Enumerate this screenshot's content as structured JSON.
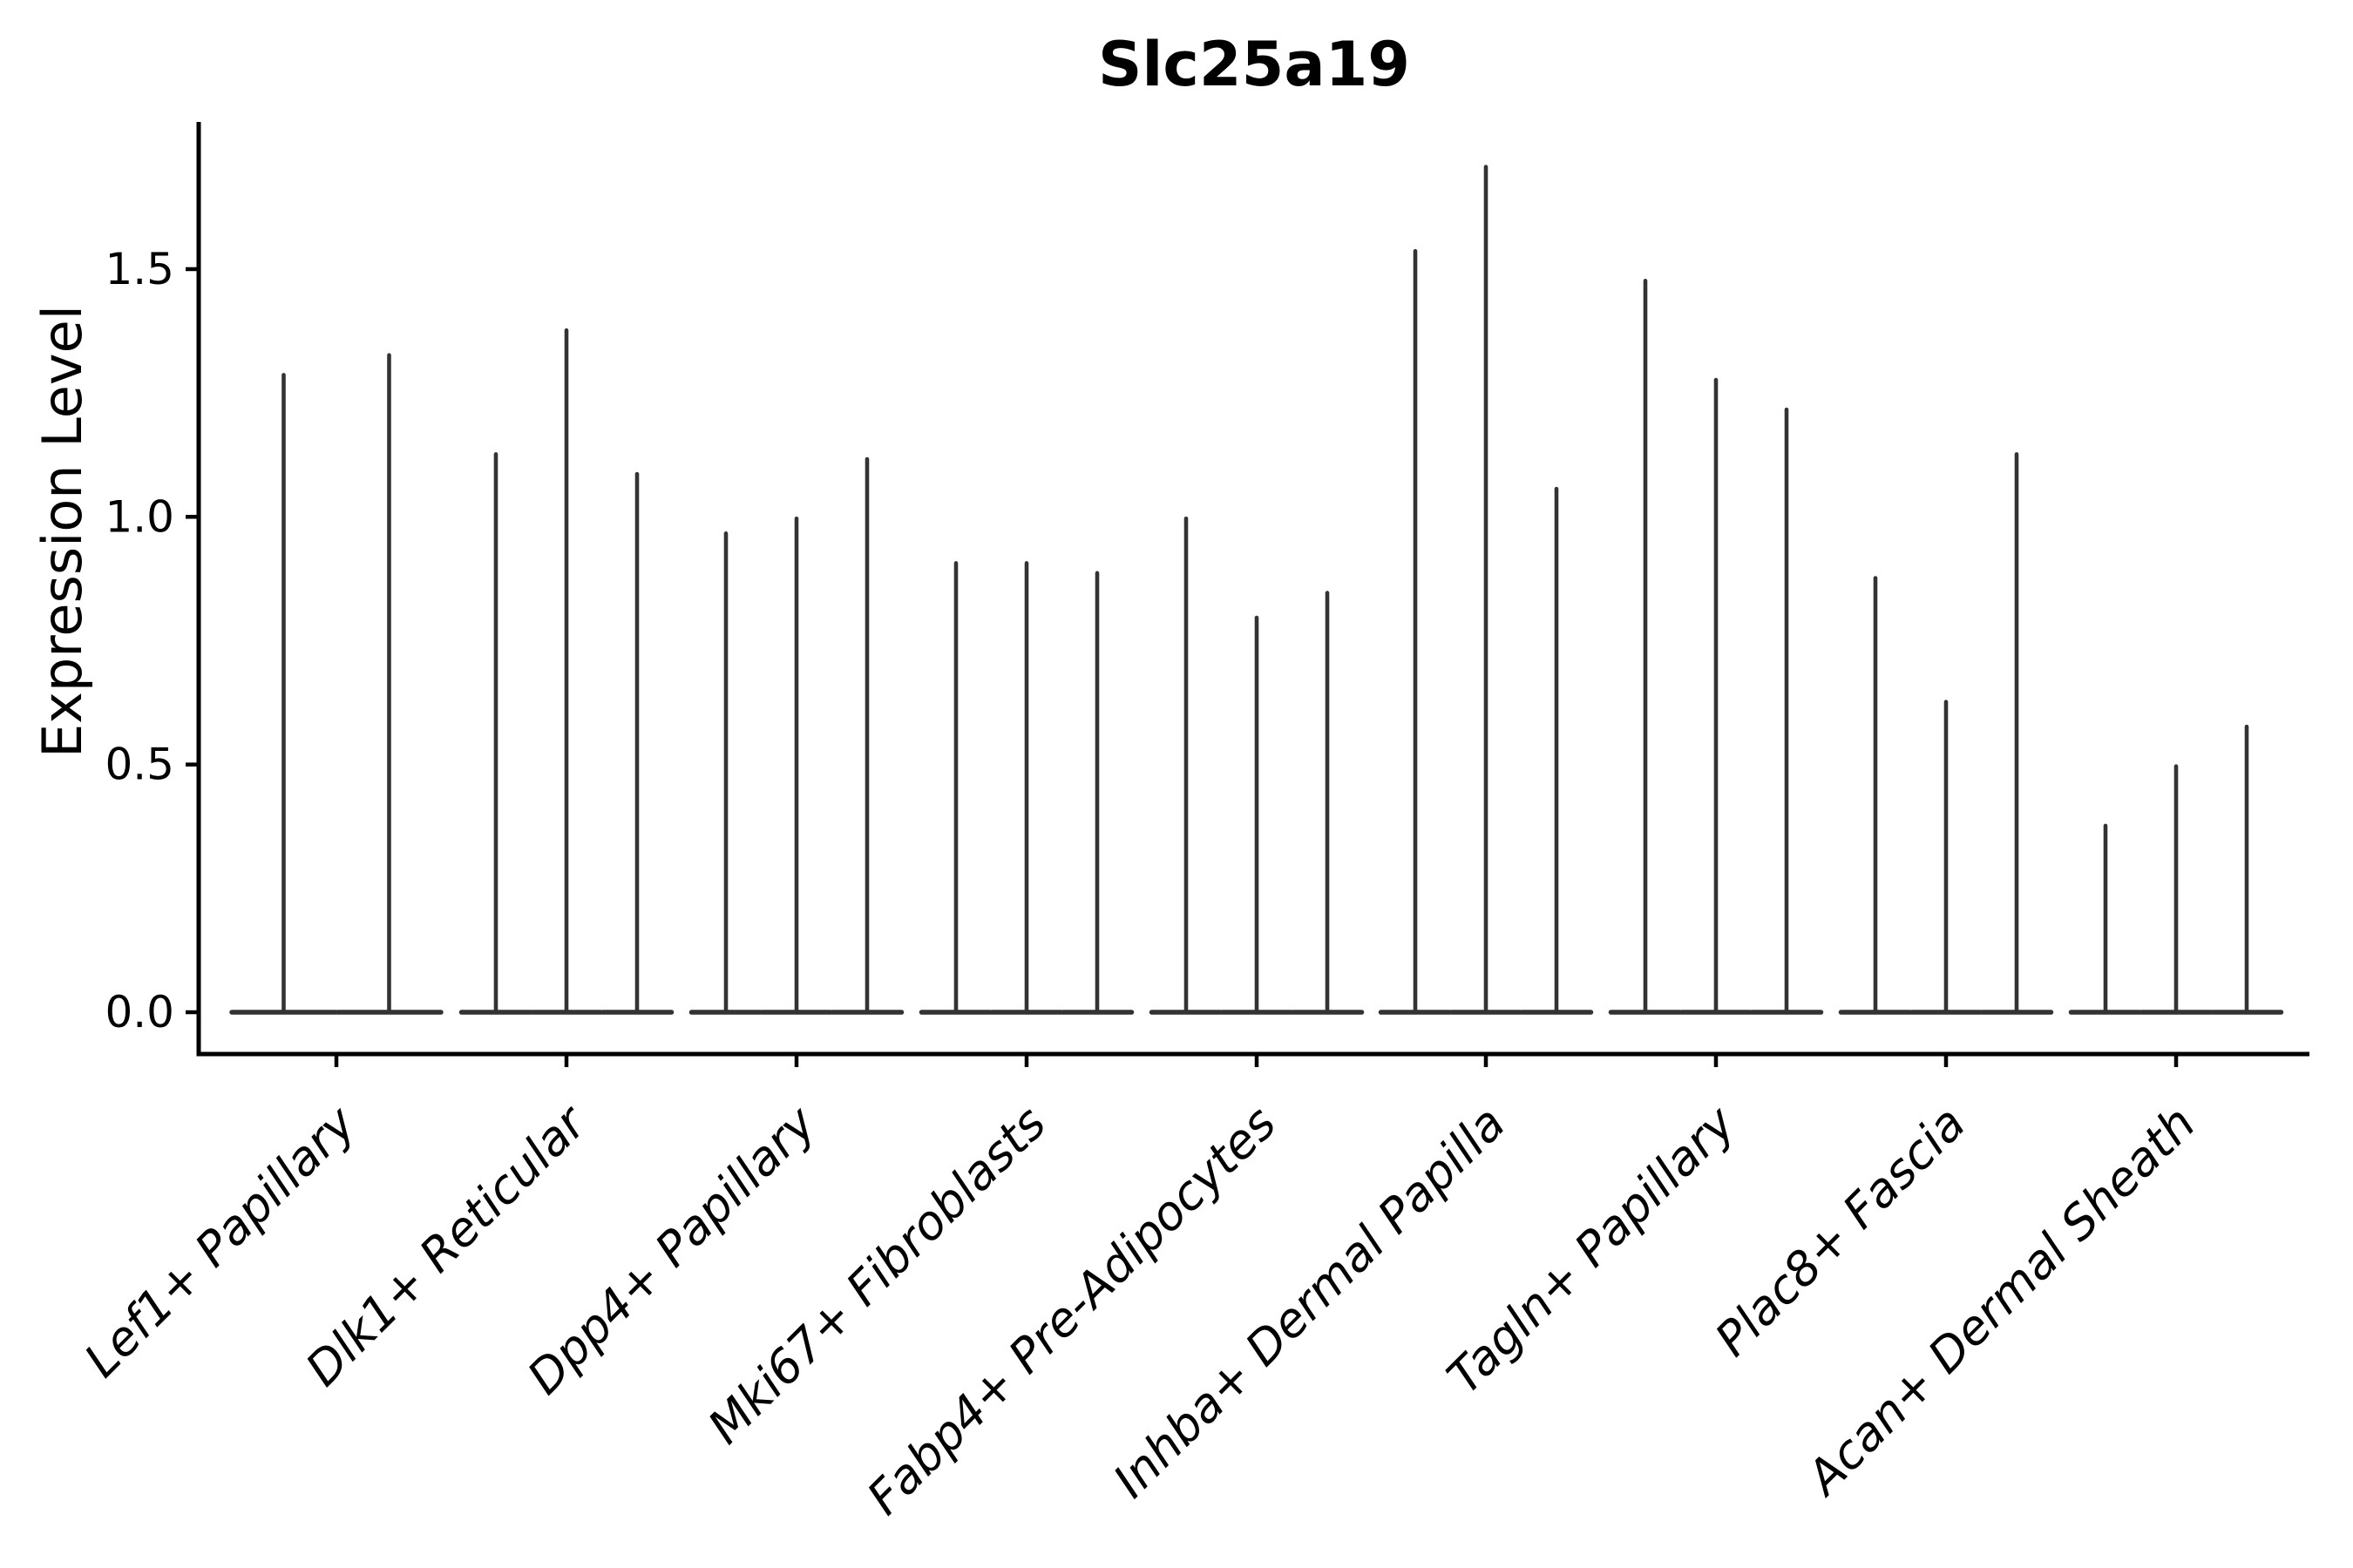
{
  "chart_data": {
    "type": "violin",
    "title": "Slc25a19",
    "ylabel": "Expression Level",
    "xlabel": "",
    "yticks": [
      {
        "value": 0.0,
        "label": "0.0"
      },
      {
        "value": 0.5,
        "label": "0.5"
      },
      {
        "value": 1.0,
        "label": "1.0"
      },
      {
        "value": 1.5,
        "label": "1.5"
      }
    ],
    "ylim": [
      -0.08,
      1.8
    ],
    "grid": false,
    "legend": "none",
    "categories": [
      "Lef1+ Papillary",
      "Dlk1+ Reticular",
      "Dpp4+ Papillary",
      "Mki67+ Fibroblasts",
      "Fabp4+ Pre-Adipocytes",
      "Inhba+ Dermal Papilla",
      "Tagln+ Papillary",
      "Plac8+ Fascia",
      "Acan+ Dermal Sheath"
    ],
    "groups": [
      {
        "category": "Lef1+ Papillary",
        "violin_max_heights": [
          1.29,
          1.33
        ]
      },
      {
        "category": "Dlk1+ Reticular",
        "violin_max_heights": [
          1.13,
          1.38,
          1.09
        ]
      },
      {
        "category": "Dpp4+ Papillary",
        "violin_max_heights": [
          0.97,
          1.0,
          1.12
        ]
      },
      {
        "category": "Mki67+ Fibroblasts",
        "violin_max_heights": [
          0.91,
          0.91,
          0.89
        ]
      },
      {
        "category": "Fabp4+ Pre-Adipocytes",
        "violin_max_heights": [
          1.0,
          0.8,
          0.85
        ]
      },
      {
        "category": "Inhba+ Dermal Papilla",
        "violin_max_heights": [
          1.54,
          1.71,
          1.06
        ]
      },
      {
        "category": "Tagln+ Papillary",
        "violin_max_heights": [
          1.48,
          1.28,
          1.22
        ]
      },
      {
        "category": "Plac8+ Fascia",
        "violin_max_heights": [
          0.88,
          0.63,
          1.13
        ]
      },
      {
        "category": "Acan+ Dermal Sheath",
        "violin_max_heights": [
          0.38,
          0.5,
          0.58
        ]
      }
    ],
    "violin_shape_note": "needle-thin violins: wide flat base at 0, thin spike to max",
    "colors": {
      "violin": "#333333",
      "axis": "#000000",
      "text": "#000000",
      "background": "#ffffff"
    }
  }
}
